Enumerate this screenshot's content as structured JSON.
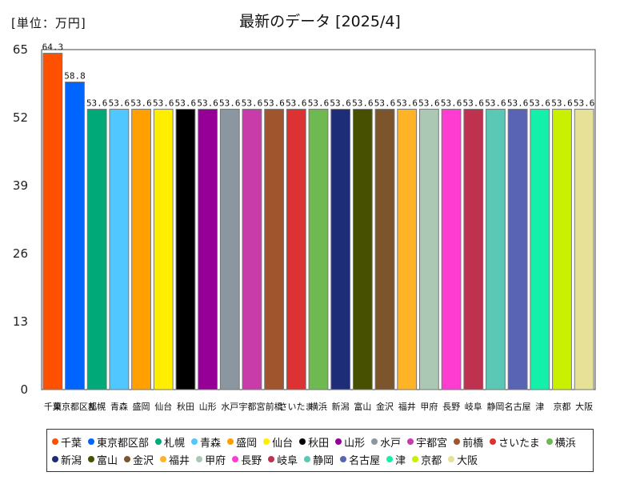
{
  "unit_label": "[単位：万円]",
  "chart_data": {
    "type": "bar",
    "title": "最新のデータ [2025/4]",
    "categories": [
      "千葉",
      "東京都区部",
      "札幌",
      "青森",
      "盛岡",
      "仙台",
      "秋田",
      "山形",
      "水戸",
      "宇都宮",
      "前橋",
      "さいたま",
      "横浜",
      "新潟",
      "富山",
      "金沢",
      "福井",
      "甲府",
      "長野",
      "岐阜",
      "静岡",
      "名古屋",
      "津",
      "京都",
      "大阪"
    ],
    "values": [
      64.3,
      58.8,
      53.6,
      53.6,
      53.6,
      53.6,
      53.6,
      53.6,
      53.6,
      53.6,
      53.6,
      53.6,
      53.6,
      53.6,
      53.6,
      53.6,
      53.6,
      53.6,
      53.6,
      53.6,
      53.6,
      53.6,
      53.6,
      53.6,
      53.6
    ],
    "value_labels": [
      "64.3",
      "58.8",
      "53.6",
      "53.6",
      "53.6",
      "53.6",
      "53.6",
      "53.6",
      "53.6",
      "53.6",
      "53.6",
      "53.6",
      "53.6",
      "53.6",
      "53.6",
      "53.6",
      "53.6",
      "53.6",
      "53.6",
      "53.6",
      "53.6",
      "53.6",
      "53.6",
      "53.6",
      "53.6"
    ],
    "colors": [
      "#ff5000",
      "#0064ff",
      "#00aa78",
      "#50c8ff",
      "#ffa000",
      "#ffee00",
      "#000000",
      "#960096",
      "#8c96a0",
      "#c83caa",
      "#a0552d",
      "#dc3232",
      "#6eb950",
      "#1e2d78",
      "#465000",
      "#7d552d",
      "#ffb428",
      "#aac8b4",
      "#ff3cd2",
      "#be3250",
      "#5ac8b4",
      "#5a64b4",
      "#14f0aa",
      "#c8f000",
      "#e6e196"
    ],
    "yticks": [
      "0",
      "13",
      "26",
      "39",
      "52",
      "65"
    ],
    "ylim": [
      0,
      65
    ],
    "grid": false,
    "legend_position": "bottom"
  }
}
